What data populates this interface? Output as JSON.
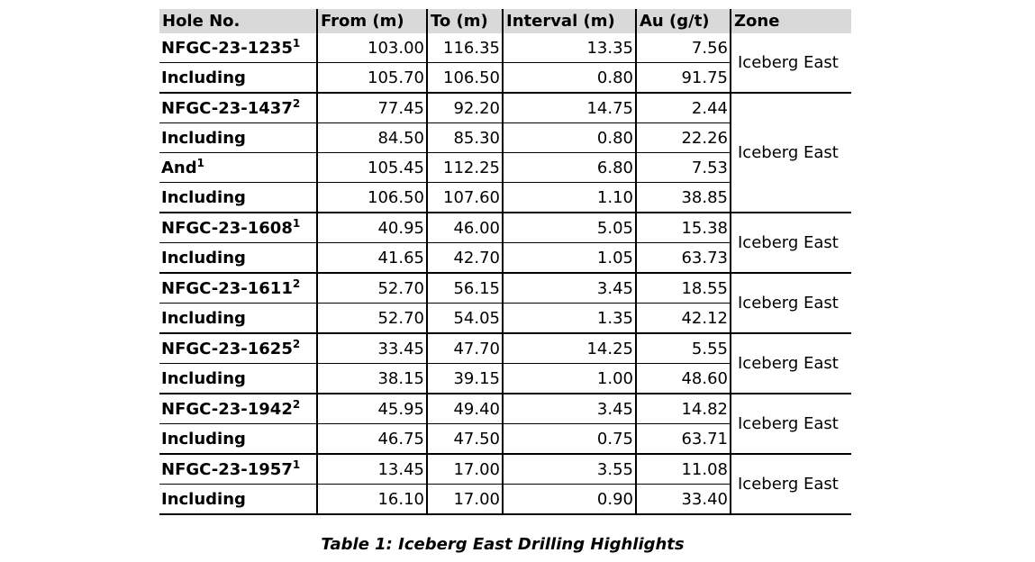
{
  "headers": [
    "Hole No.",
    "From (m)",
    "To (m)",
    "Interval (m)",
    "Au (g/t)",
    "Zone"
  ],
  "groups": [
    {
      "zone": "Iceberg East",
      "rows": [
        {
          "label": "NFGC-23-1235",
          "sup": "1",
          "from": "103.00",
          "to": "116.35",
          "interval": "13.35",
          "au": "7.56"
        },
        {
          "label": "Including",
          "sup": "",
          "from": "105.70",
          "to": "106.50",
          "interval": "0.80",
          "au": "91.75"
        }
      ]
    },
    {
      "zone": "Iceberg East",
      "rows": [
        {
          "label": "NFGC-23-1437",
          "sup": "2",
          "from": "77.45",
          "to": "92.20",
          "interval": "14.75",
          "au": "2.44"
        },
        {
          "label": "Including",
          "sup": "",
          "from": "84.50",
          "to": "85.30",
          "interval": "0.80",
          "au": "22.26"
        },
        {
          "label": "And",
          "sup": "1",
          "from": "105.45",
          "to": "112.25",
          "interval": "6.80",
          "au": "7.53"
        },
        {
          "label": "Including",
          "sup": "",
          "from": "106.50",
          "to": "107.60",
          "interval": "1.10",
          "au": "38.85"
        }
      ]
    },
    {
      "zone": "Iceberg East",
      "rows": [
        {
          "label": "NFGC-23-1608",
          "sup": "1",
          "from": "40.95",
          "to": "46.00",
          "interval": "5.05",
          "au": "15.38"
        },
        {
          "label": "Including",
          "sup": "",
          "from": "41.65",
          "to": "42.70",
          "interval": "1.05",
          "au": "63.73"
        }
      ]
    },
    {
      "zone": "Iceberg East",
      "rows": [
        {
          "label": "NFGC-23-1611",
          "sup": "2",
          "from": "52.70",
          "to": "56.15",
          "interval": "3.45",
          "au": "18.55"
        },
        {
          "label": "Including",
          "sup": "",
          "from": "52.70",
          "to": "54.05",
          "interval": "1.35",
          "au": "42.12"
        }
      ]
    },
    {
      "zone": "Iceberg East",
      "rows": [
        {
          "label": "NFGC-23-1625",
          "sup": "2",
          "from": "33.45",
          "to": "47.70",
          "interval": "14.25",
          "au": "5.55"
        },
        {
          "label": "Including",
          "sup": "",
          "from": "38.15",
          "to": "39.15",
          "interval": "1.00",
          "au": "48.60"
        }
      ]
    },
    {
      "zone": "Iceberg East",
      "rows": [
        {
          "label": "NFGC-23-1942",
          "sup": "2",
          "from": "45.95",
          "to": "49.40",
          "interval": "3.45",
          "au": "14.82"
        },
        {
          "label": "Including",
          "sup": "",
          "from": "46.75",
          "to": "47.50",
          "interval": "0.75",
          "au": "63.71"
        }
      ]
    },
    {
      "zone": "Iceberg East",
      "rows": [
        {
          "label": "NFGC-23-1957",
          "sup": "1",
          "from": "13.45",
          "to": "17.00",
          "interval": "3.55",
          "au": "11.08"
        },
        {
          "label": "Including",
          "sup": "",
          "from": "16.10",
          "to": "17.00",
          "interval": "0.90",
          "au": "33.40"
        }
      ]
    }
  ],
  "caption": "Table 1: Iceberg East Drilling Highlights"
}
